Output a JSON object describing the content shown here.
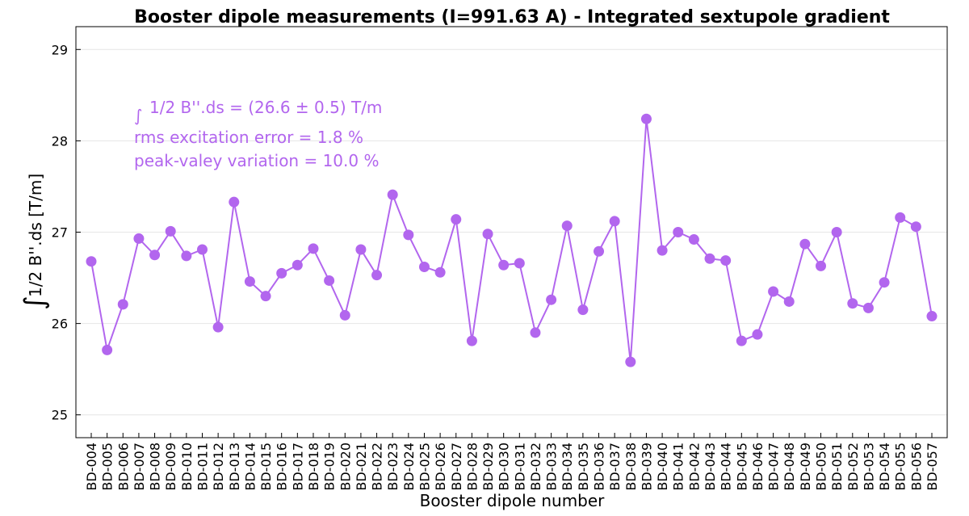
{
  "chart_data": {
    "type": "line",
    "title": "Booster dipole measurements (I=991.63 A) - Integrated sextupole gradient",
    "xlabel": "Booster dipole number",
    "ylabel": "1/2 B''.ds [T/m]",
    "ylim": [
      24.75,
      29.25
    ],
    "yticks": [
      "25",
      "26",
      "27",
      "28",
      "29"
    ],
    "grid": true,
    "color": "#b266ee",
    "categories": [
      "BD-004",
      "BD-005",
      "BD-006",
      "BD-007",
      "BD-008",
      "BD-009",
      "BD-010",
      "BD-011",
      "BD-012",
      "BD-013",
      "BD-014",
      "BD-015",
      "BD-016",
      "BD-017",
      "BD-018",
      "BD-019",
      "BD-020",
      "BD-021",
      "BD-022",
      "BD-023",
      "BD-024",
      "BD-025",
      "BD-026",
      "BD-027",
      "BD-028",
      "BD-029",
      "BD-030",
      "BD-031",
      "BD-032",
      "BD-033",
      "BD-034",
      "BD-035",
      "BD-036",
      "BD-037",
      "BD-038",
      "BD-039",
      "BD-040",
      "BD-041",
      "BD-042",
      "BD-043",
      "BD-044",
      "BD-045",
      "BD-046",
      "BD-047",
      "BD-048",
      "BD-049",
      "BD-050",
      "BD-051",
      "BD-052",
      "BD-053",
      "BD-054",
      "BD-055",
      "BD-056",
      "BD-057"
    ],
    "values": [
      26.68,
      25.71,
      26.21,
      26.93,
      26.75,
      27.01,
      26.74,
      26.81,
      25.96,
      27.33,
      26.46,
      26.3,
      26.55,
      26.64,
      26.82,
      26.47,
      26.09,
      26.81,
      26.53,
      27.41,
      26.97,
      26.62,
      26.56,
      27.14,
      25.81,
      26.98,
      26.64,
      26.66,
      25.9,
      26.26,
      27.07,
      26.15,
      26.79,
      27.12,
      25.58,
      28.24,
      26.8,
      27.0,
      26.92,
      26.71,
      26.69,
      25.81,
      25.88,
      26.35,
      26.24,
      26.87,
      26.63,
      27.0,
      26.22,
      26.17,
      26.45,
      27.16,
      27.06,
      26.08
    ],
    "annotations": {
      "line1": "1/2 B''.ds = (26.6 ±  0.5) T/m",
      "line2": "rms excitation error = 1.8 %",
      "line3": "peak-valey variation = 10.0 %"
    }
  }
}
